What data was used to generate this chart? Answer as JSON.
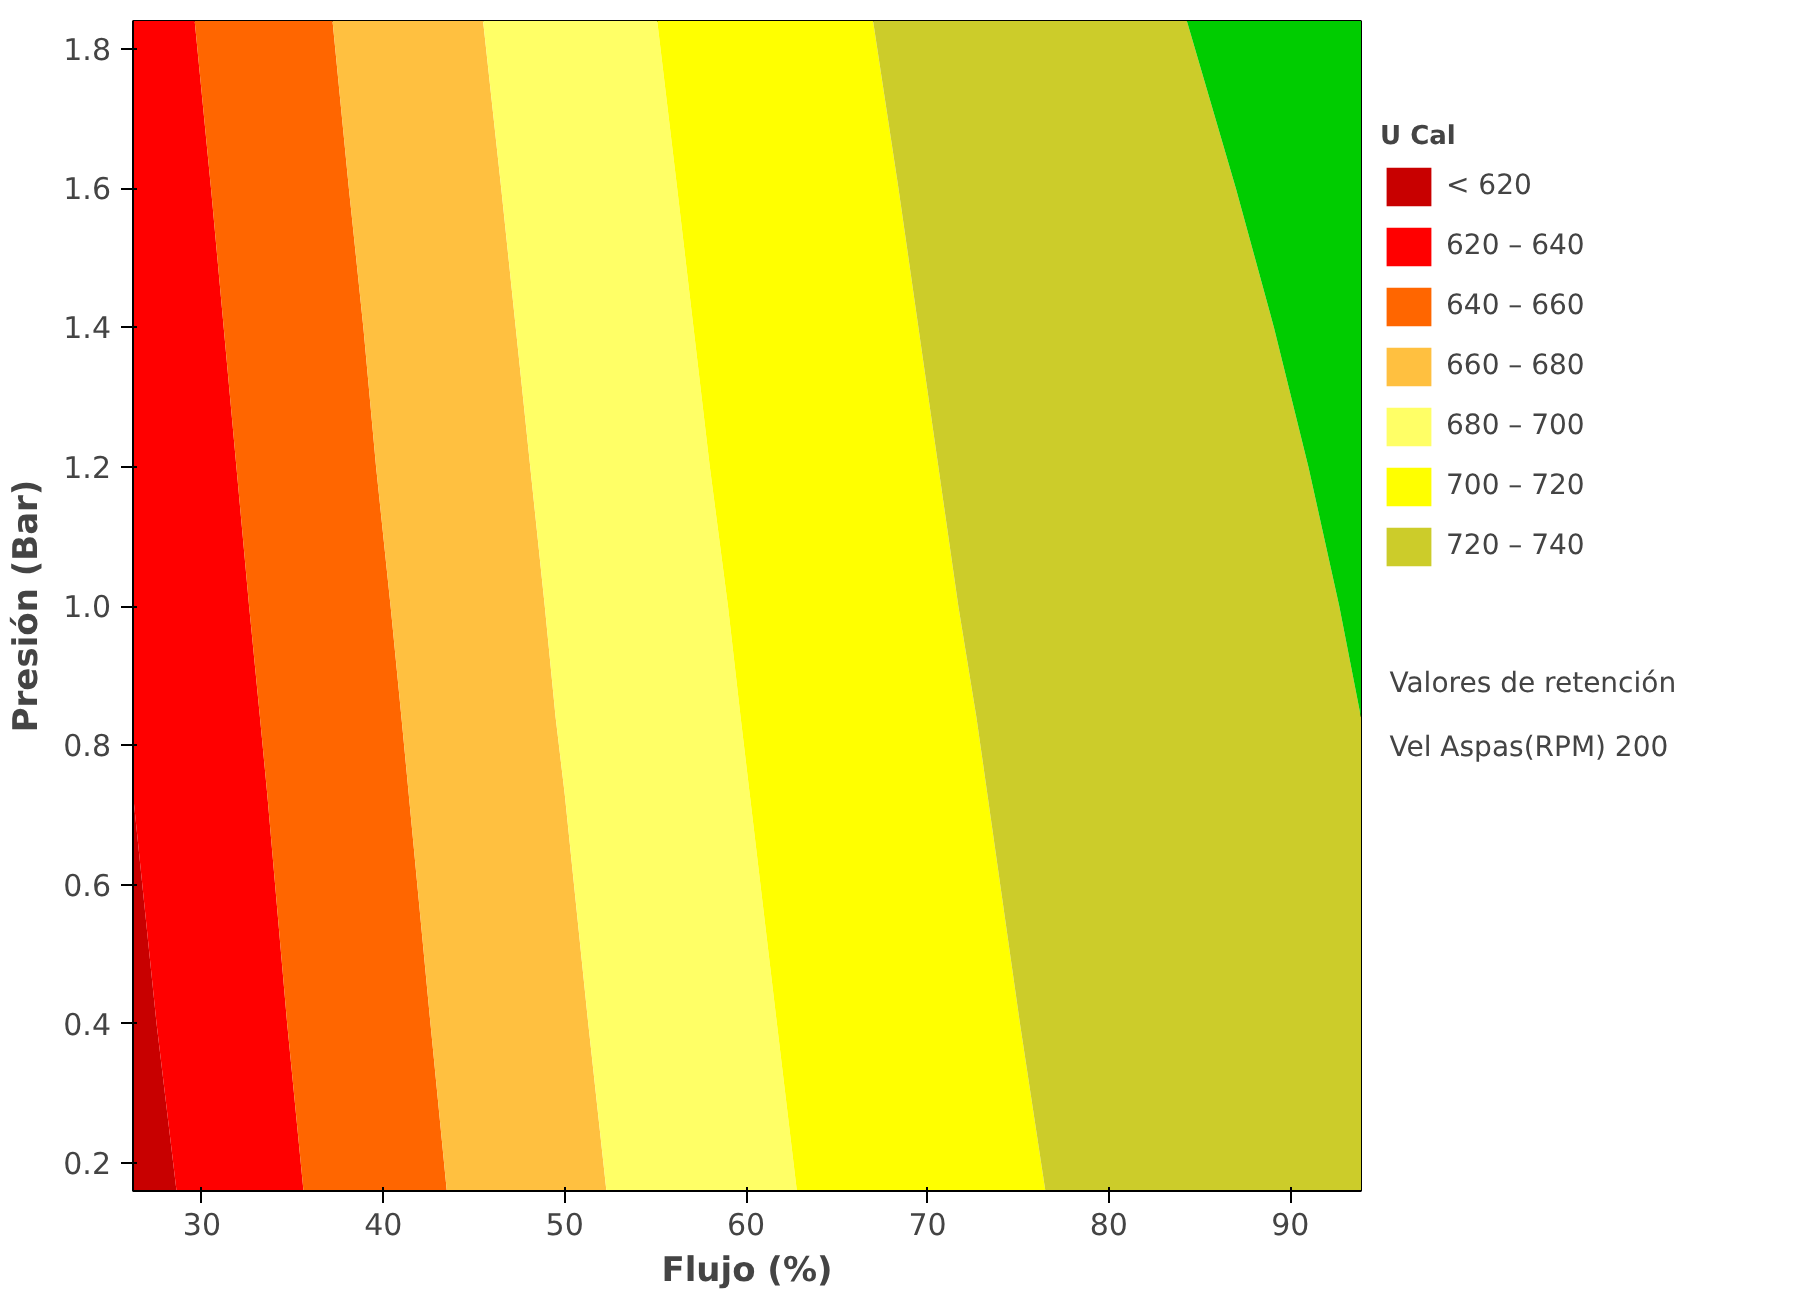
{
  "chart_data": {
    "type": "area",
    "orientation": "horizontal",
    "xlabel": "Flujo (%)",
    "ylabel": "Presión (Bar)",
    "legend_title": "U Cal",
    "legend": "right",
    "grid": false,
    "x": [
      0.16,
      0.4,
      0.73,
      0.84,
      1.0,
      1.2,
      1.4,
      1.6,
      1.84
    ],
    "series": [
      {
        "name": "< 620",
        "color": "#c80000",
        "values": [
          28.6,
          27.5,
          26.2,
          26.2,
          26.2,
          26.2,
          26.2,
          26.2,
          26.2
        ]
      },
      {
        "name": "620 – 640",
        "color": "#ff0000",
        "values": [
          35.6,
          34.7,
          33.6,
          33.2,
          32.6,
          31.9,
          31.2,
          30.5,
          29.6
        ]
      },
      {
        "name": "640 – 660",
        "color": "#ff6600",
        "values": [
          43.5,
          42.6,
          41.4,
          41.0,
          40.4,
          39.6,
          38.9,
          38.1,
          37.2
        ]
      },
      {
        "name": "660 – 680",
        "color": "#ffc040",
        "values": [
          52.3,
          51.3,
          50.0,
          49.5,
          48.9,
          48.1,
          47.3,
          46.5,
          45.5
        ]
      },
      {
        "name": "680 – 700",
        "color": "#ffff66",
        "values": [
          62.8,
          61.7,
          60.2,
          59.7,
          59.0,
          58.0,
          57.1,
          56.2,
          55.1
        ]
      },
      {
        "name": "700 – 720",
        "color": "#ffff00",
        "values": [
          76.5,
          75.1,
          73.3,
          72.7,
          71.7,
          70.6,
          69.5,
          68.4,
          67.0
        ]
      },
      {
        "name": "720 – 740",
        "color": "#cccc2a",
        "values": [
          93.9,
          93.9,
          93.9,
          93.9,
          92.7,
          91.0,
          89.1,
          87.0,
          84.3
        ]
      },
      {
        "color": "#00cc00",
        "values": [
          93.9,
          93.9,
          93.9,
          93.9,
          93.9,
          93.9,
          93.9,
          93.9,
          93.9
        ]
      }
    ],
    "xlim": [
      26.2,
      93.9
    ],
    "xticks": [
      30,
      40,
      50,
      60,
      70,
      80,
      90
    ],
    "ylim": [
      0.16,
      1.84
    ],
    "yticks": [
      {
        "value": 0.2,
        "label": "0.2"
      },
      {
        "value": 0.4,
        "label": "0.4"
      },
      {
        "value": 0.6,
        "label": "0.6"
      },
      {
        "value": 0.8,
        "label": "0.8"
      },
      {
        "value": 1.0,
        "label": "1.0"
      },
      {
        "value": 1.2,
        "label": "1.2"
      },
      {
        "value": 1.4,
        "label": "1.4"
      },
      {
        "value": 1.6,
        "label": "1.6"
      },
      {
        "value": 1.8,
        "label": "1.8"
      }
    ],
    "annotations": [
      "Valores de retención",
      "Vel Aspas(RPM)     200"
    ]
  }
}
